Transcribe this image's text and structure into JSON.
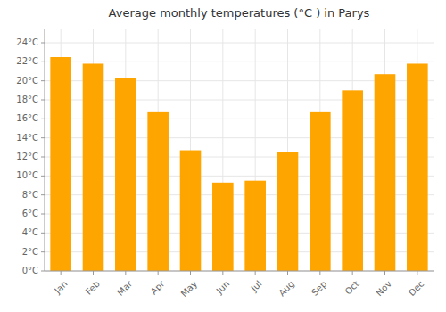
{
  "chart_data": {
    "type": "bar",
    "title": "Average monthly temperatures (°C ) in Parys",
    "categories": [
      "Jan",
      "Feb",
      "Mar",
      "Apr",
      "May",
      "Jun",
      "Jul",
      "Aug",
      "Sep",
      "Oct",
      "Nov",
      "Dec"
    ],
    "values": [
      22.5,
      21.8,
      20.3,
      16.7,
      12.7,
      9.3,
      9.5,
      12.5,
      16.7,
      19.0,
      20.7,
      21.8
    ],
    "color": "#FFA500",
    "ylim": [
      0,
      25.5
    ],
    "yticks": [
      {
        "value": 0,
        "label": "0°C"
      },
      {
        "value": 2,
        "label": "2°C"
      },
      {
        "value": 4,
        "label": "4°C"
      },
      {
        "value": 6,
        "label": "6°C"
      },
      {
        "value": 8,
        "label": "8°C"
      },
      {
        "value": 10,
        "label": "10°C"
      },
      {
        "value": 12,
        "label": "12°C"
      },
      {
        "value": 14,
        "label": "14°C"
      },
      {
        "value": 16,
        "label": "16°C"
      },
      {
        "value": 18,
        "label": "18°C"
      },
      {
        "value": 20,
        "label": "20°C"
      },
      {
        "value": 22,
        "label": "22°C"
      },
      {
        "value": 24,
        "label": "24°C"
      }
    ],
    "grid": true
  }
}
